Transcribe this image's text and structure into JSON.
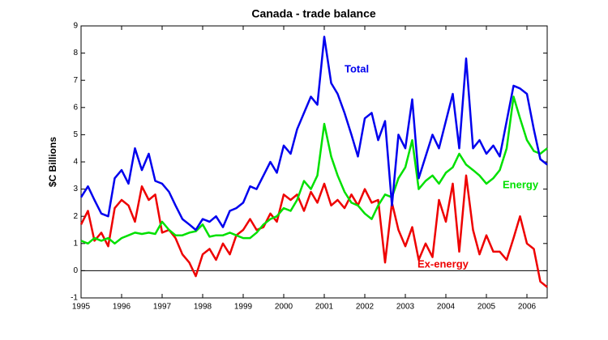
{
  "chart_data": {
    "type": "line",
    "title": "Canada - trade balance",
    "ylabel": "$C Billions",
    "x": [
      1995,
      1995.17,
      1995.33,
      1995.5,
      1995.67,
      1995.83,
      1996,
      1996.17,
      1996.33,
      1996.5,
      1996.67,
      1996.83,
      1997,
      1997.17,
      1997.33,
      1997.5,
      1997.67,
      1997.83,
      1998,
      1998.17,
      1998.33,
      1998.5,
      1998.67,
      1998.83,
      1999,
      1999.17,
      1999.33,
      1999.5,
      1999.67,
      1999.83,
      2000,
      2000.17,
      2000.33,
      2000.5,
      2000.67,
      2000.83,
      2001,
      2001.17,
      2001.33,
      2001.5,
      2001.67,
      2001.83,
      2002,
      2002.17,
      2002.33,
      2002.5,
      2002.67,
      2002.83,
      2003,
      2003.17,
      2003.33,
      2003.5,
      2003.67,
      2003.83,
      2004,
      2004.17,
      2004.33,
      2004.5,
      2004.67,
      2004.83,
      2005,
      2005.17,
      2005.33,
      2005.5,
      2005.67,
      2005.83,
      2006,
      2006.17,
      2006.33,
      2006.5
    ],
    "series": [
      {
        "name": "Total",
        "color": "#0000ee",
        "values": [
          2.7,
          3.1,
          2.6,
          2.1,
          2.0,
          3.4,
          3.7,
          3.2,
          4.5,
          3.7,
          4.3,
          3.3,
          3.2,
          2.9,
          2.4,
          1.9,
          1.7,
          1.5,
          1.9,
          1.8,
          2.0,
          1.6,
          2.2,
          2.3,
          2.5,
          3.1,
          3.0,
          3.5,
          4.0,
          3.6,
          4.6,
          4.3,
          5.2,
          5.8,
          6.4,
          6.1,
          8.6,
          6.9,
          6.5,
          5.8,
          5.0,
          4.2,
          5.6,
          5.8,
          4.8,
          5.5,
          2.4,
          5.0,
          4.5,
          6.3,
          3.4,
          4.2,
          5.0,
          4.5,
          5.5,
          6.5,
          4.5,
          7.8,
          4.5,
          4.8,
          4.3,
          4.6,
          4.2,
          5.5,
          6.8,
          6.7,
          6.5,
          5.2,
          4.1,
          3.9
        ]
      },
      {
        "name": "Energy",
        "color": "#00e000",
        "values": [
          1.1,
          1.0,
          1.2,
          1.1,
          1.2,
          1.0,
          1.2,
          1.3,
          1.4,
          1.35,
          1.4,
          1.35,
          1.8,
          1.5,
          1.3,
          1.3,
          1.4,
          1.45,
          1.7,
          1.25,
          1.3,
          1.3,
          1.4,
          1.3,
          1.2,
          1.2,
          1.4,
          1.7,
          1.9,
          2.0,
          2.3,
          2.2,
          2.6,
          3.3,
          3.0,
          3.5,
          5.4,
          4.2,
          3.5,
          2.9,
          2.5,
          2.4,
          2.1,
          1.9,
          2.4,
          2.8,
          2.7,
          3.4,
          3.8,
          4.8,
          3.0,
          3.3,
          3.5,
          3.2,
          3.6,
          3.8,
          4.3,
          3.9,
          3.7,
          3.5,
          3.2,
          3.4,
          3.7,
          4.5,
          6.4,
          5.6,
          4.8,
          4.4,
          4.3,
          4.5
        ]
      },
      {
        "name": "Ex-energy",
        "color": "#ee0000",
        "values": [
          1.7,
          2.2,
          1.1,
          1.4,
          0.9,
          2.3,
          2.6,
          2.4,
          1.8,
          3.1,
          2.6,
          2.8,
          1.4,
          1.5,
          1.2,
          0.6,
          0.3,
          -0.2,
          0.6,
          0.8,
          0.4,
          1.0,
          0.6,
          1.3,
          1.5,
          1.9,
          1.5,
          1.6,
          2.1,
          1.8,
          2.8,
          2.6,
          2.8,
          2.2,
          2.9,
          2.5,
          3.2,
          2.4,
          2.6,
          2.3,
          2.8,
          2.4,
          3.0,
          2.5,
          2.6,
          0.3,
          2.5,
          1.5,
          0.9,
          1.6,
          0.4,
          1.0,
          0.5,
          2.6,
          1.8,
          3.2,
          0.7,
          3.5,
          1.5,
          0.6,
          1.3,
          0.7,
          0.7,
          0.4,
          1.2,
          2.0,
          1.0,
          0.8,
          -0.4,
          -0.6
        ]
      }
    ],
    "xlim": [
      1995,
      2006.5
    ],
    "xticks": [
      1995,
      1996,
      1997,
      1998,
      1999,
      2000,
      2001,
      2002,
      2003,
      2004,
      2005,
      2006
    ],
    "ylim": [
      -1,
      9
    ],
    "yticks": [
      -1,
      0,
      1,
      2,
      3,
      4,
      5,
      6,
      7,
      8,
      9
    ]
  }
}
